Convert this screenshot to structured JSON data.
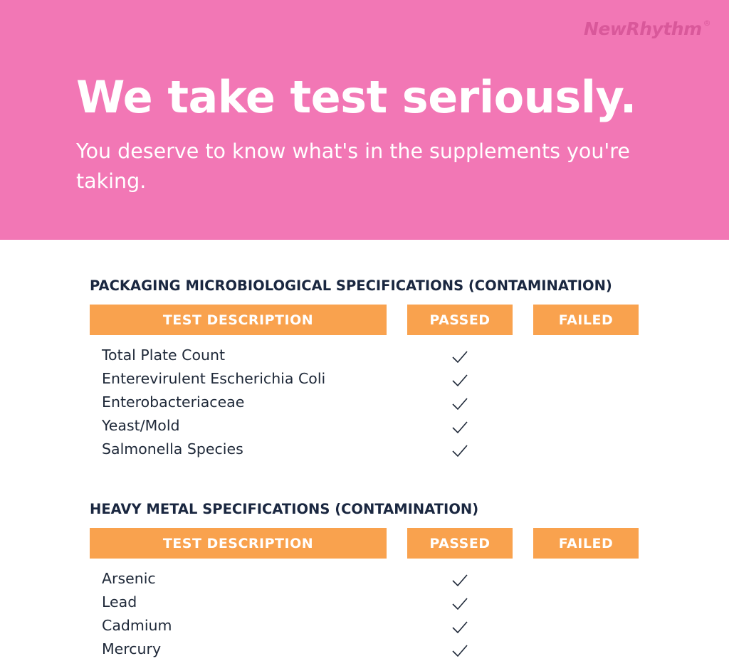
{
  "brand": {
    "logo": "NewRhythm",
    "registered": "®",
    "pink": "#f277b5",
    "orange": "#f9a24e"
  },
  "hero": {
    "title": "We take test seriously.",
    "subtitle": "You deserve to know what's in the supplements you're taking."
  },
  "sections": [
    {
      "title": "PACKAGING MICROBIOLOGICAL SPECIFICATIONS (CONTAMINATION)",
      "headers": [
        "TEST DESCRIPTION",
        "PASSED",
        "FAILED"
      ],
      "rows": [
        {
          "label": "Total Plate Count",
          "result": "passed"
        },
        {
          "label": "Enterevirulent Escherichia Coli",
          "result": "passed"
        },
        {
          "label": "Enterobacteriaceae",
          "result": "passed"
        },
        {
          "label": "Yeast/Mold",
          "result": "passed"
        },
        {
          "label": "Salmonella Species",
          "result": "passed"
        }
      ]
    },
    {
      "title": "HEAVY METAL SPECIFICATIONS (CONTAMINATION)",
      "headers": [
        "TEST DESCRIPTION",
        "PASSED",
        "FAILED"
      ],
      "rows": [
        {
          "label": "Arsenic",
          "result": "passed"
        },
        {
          "label": "Lead",
          "result": "passed"
        },
        {
          "label": "Cadmium",
          "result": "passed"
        },
        {
          "label": "Mercury",
          "result": "passed"
        }
      ]
    }
  ]
}
